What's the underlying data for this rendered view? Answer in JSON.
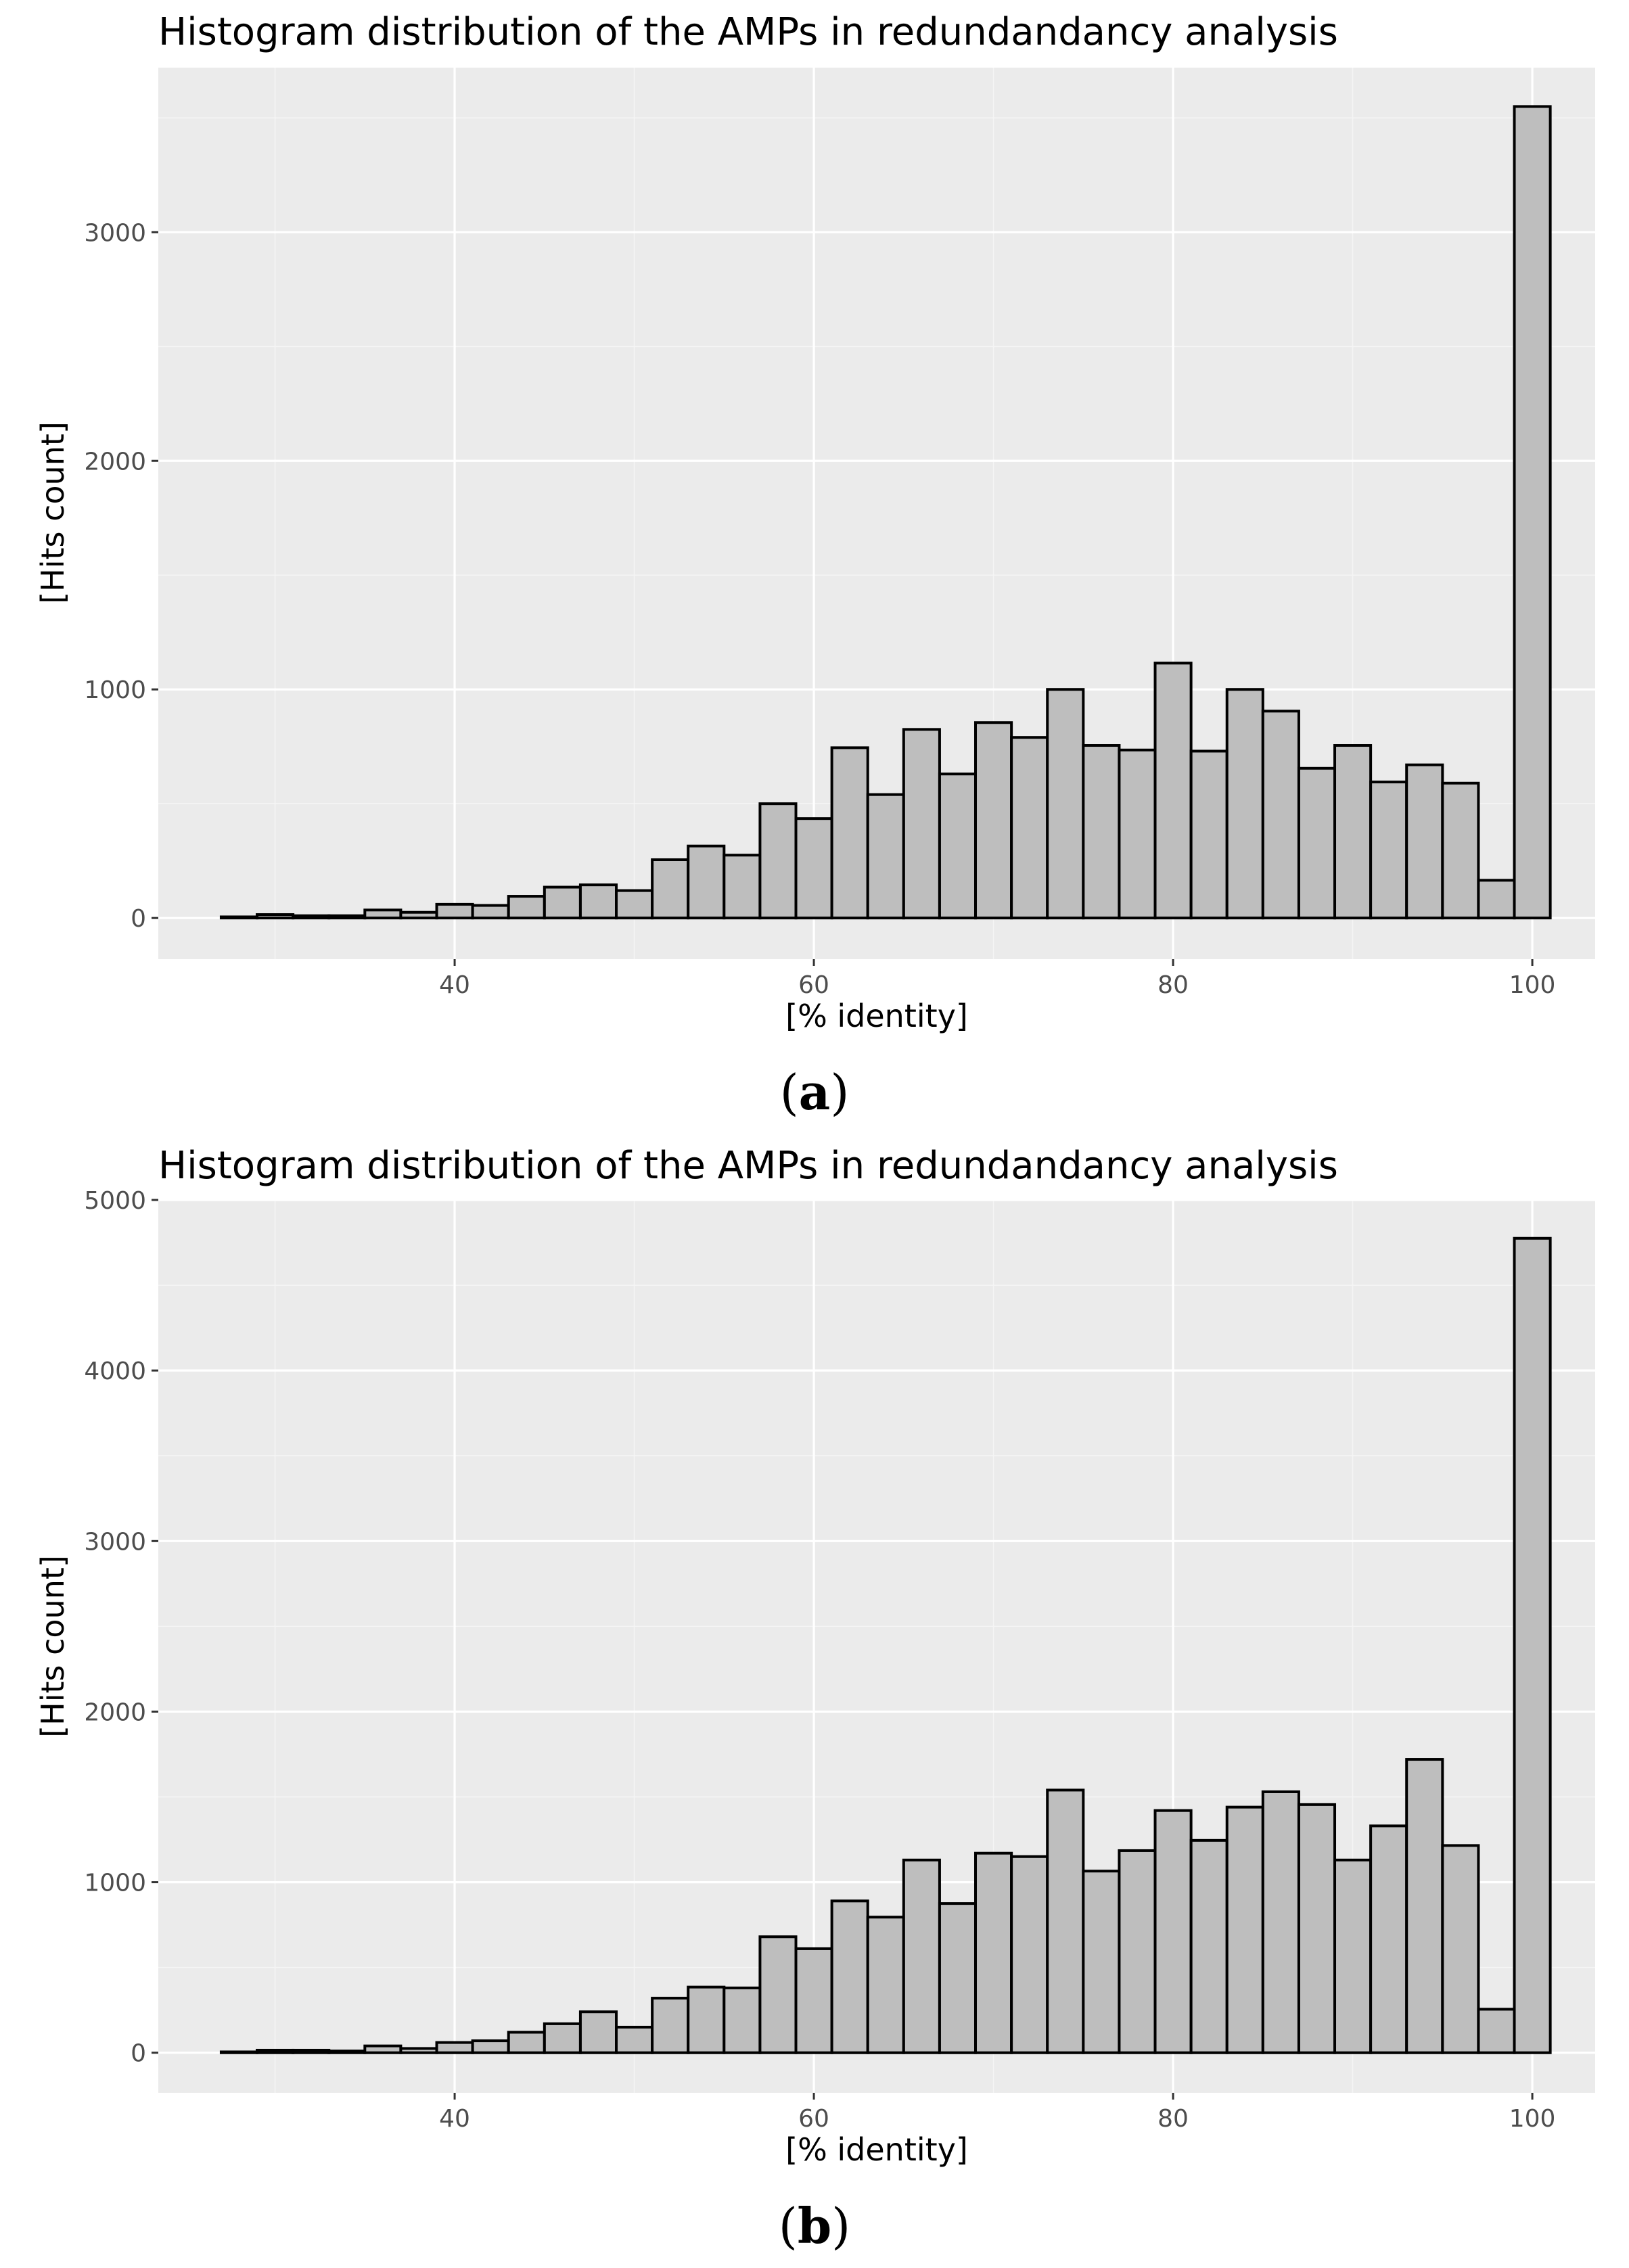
{
  "colors": {
    "panel_background": "#ebebeb",
    "bar_fill": "#bebebe",
    "bar_outline": "#000000",
    "grid": "#ffffff"
  },
  "chart_data": [
    {
      "type": "bar",
      "panel": "a",
      "caption_open": "(",
      "caption_letter": "a",
      "caption_close": ")",
      "title": "Histogram distribution of the AMPs in redundandancy analysis",
      "xlabel": "[% identity]",
      "ylabel": "[Hits count]",
      "xlim": [
        23.5,
        103.5
      ],
      "ylim": [
        -180,
        3720
      ],
      "x_ticks": [
        40,
        60,
        80,
        100
      ],
      "x_tick_labels": [
        "40",
        "60",
        "80",
        "100"
      ],
      "y_ticks": [
        0,
        1000,
        2000,
        3000
      ],
      "y_tick_labels": [
        "0",
        "1000",
        "2000",
        "3000"
      ],
      "bin_width": 2,
      "bin_centers": [
        28,
        30,
        32,
        34,
        36,
        38,
        40,
        42,
        44,
        46,
        48,
        50,
        52,
        54,
        56,
        58,
        60,
        62,
        64,
        66,
        68,
        70,
        72,
        74,
        76,
        78,
        80,
        82,
        84,
        86,
        88,
        90,
        92,
        94,
        96,
        98,
        100
      ],
      "values": [
        5,
        15,
        10,
        10,
        35,
        25,
        60,
        55,
        95,
        135,
        145,
        120,
        255,
        315,
        275,
        500,
        435,
        745,
        540,
        825,
        630,
        855,
        790,
        1000,
        755,
        735,
        1115,
        730,
        1000,
        905,
        655,
        755,
        595,
        670,
        590,
        165,
        3550
      ]
    },
    {
      "type": "bar",
      "panel": "b",
      "caption_open": "(",
      "caption_letter": "b",
      "caption_close": ")",
      "title": "Histogram distribution of the AMPs in redundandancy analysis",
      "xlabel": "[% identity]",
      "ylabel": "[Hits count]",
      "xlim": [
        23.5,
        103.5
      ],
      "ylim": [
        -235,
        5000
      ],
      "x_ticks": [
        40,
        60,
        80,
        100
      ],
      "x_tick_labels": [
        "40",
        "60",
        "80",
        "100"
      ],
      "y_ticks": [
        0,
        1000,
        2000,
        3000,
        4000,
        5000
      ],
      "y_tick_labels": [
        "0",
        "1000",
        "2000",
        "3000",
        "4000",
        "5000"
      ],
      "bin_width": 2,
      "bin_centers": [
        28,
        30,
        32,
        34,
        36,
        38,
        40,
        42,
        44,
        46,
        48,
        50,
        52,
        54,
        56,
        58,
        60,
        62,
        64,
        66,
        68,
        70,
        72,
        74,
        76,
        78,
        80,
        82,
        84,
        86,
        88,
        90,
        92,
        94,
        96,
        98,
        100
      ],
      "values": [
        5,
        15,
        15,
        10,
        40,
        25,
        60,
        70,
        120,
        170,
        240,
        150,
        320,
        385,
        380,
        680,
        610,
        890,
        795,
        1130,
        875,
        1170,
        1150,
        1540,
        1065,
        1185,
        1420,
        1245,
        1440,
        1530,
        1455,
        1130,
        1330,
        1720,
        1215,
        255,
        4775
      ]
    }
  ]
}
